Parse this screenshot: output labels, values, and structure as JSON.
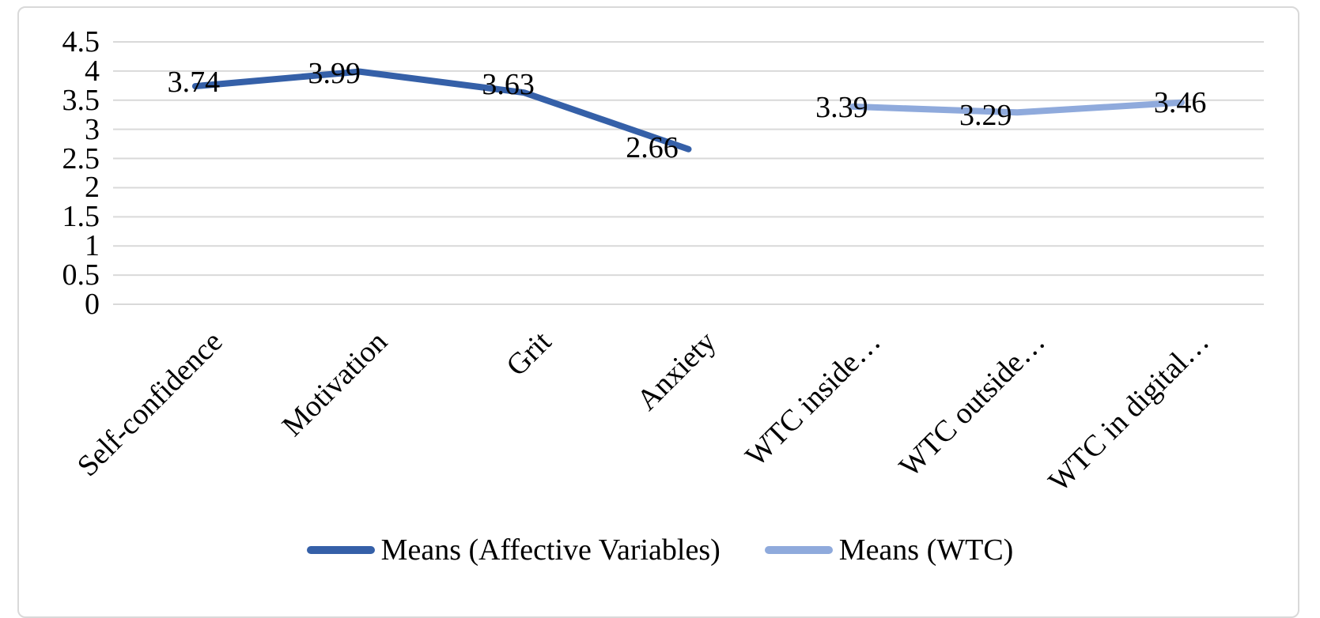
{
  "chart_data": {
    "type": "line",
    "categories": [
      "Self-confidence",
      "Motivation",
      "Grit",
      "Anxiety",
      "WTC inside…",
      "WTC outside…",
      "WTC in digital…"
    ],
    "series": [
      {
        "name": "Means (Affective Variables)",
        "color": "#3560A8",
        "values": [
          3.74,
          3.99,
          3.63,
          2.66,
          null,
          null,
          null
        ],
        "data_labels": [
          "3.74",
          "3.99",
          "3.63",
          "2.66",
          null,
          null,
          null
        ]
      },
      {
        "name": "Means (WTC)",
        "color": "#8FAADC",
        "values": [
          null,
          null,
          null,
          null,
          3.39,
          3.29,
          3.46
        ],
        "data_labels": [
          null,
          null,
          null,
          null,
          "3.39",
          "3.29",
          "3.46"
        ]
      }
    ],
    "y_axis": {
      "min": 0,
      "max": 4.5,
      "step": 0.5,
      "tick_labels": [
        "4.5",
        "4",
        "3.5",
        "3",
        "2.5",
        "2",
        "1.5",
        "1",
        "0.5",
        "0"
      ]
    },
    "x_axis": {
      "label_rotation_deg": 45
    },
    "title": "",
    "grid": true,
    "legend_position": "bottom",
    "colors": {
      "gridline": "#D9D9D9",
      "frame_border": "#D9D9D9",
      "background": "#FFFFFF",
      "text": "#000000"
    }
  }
}
